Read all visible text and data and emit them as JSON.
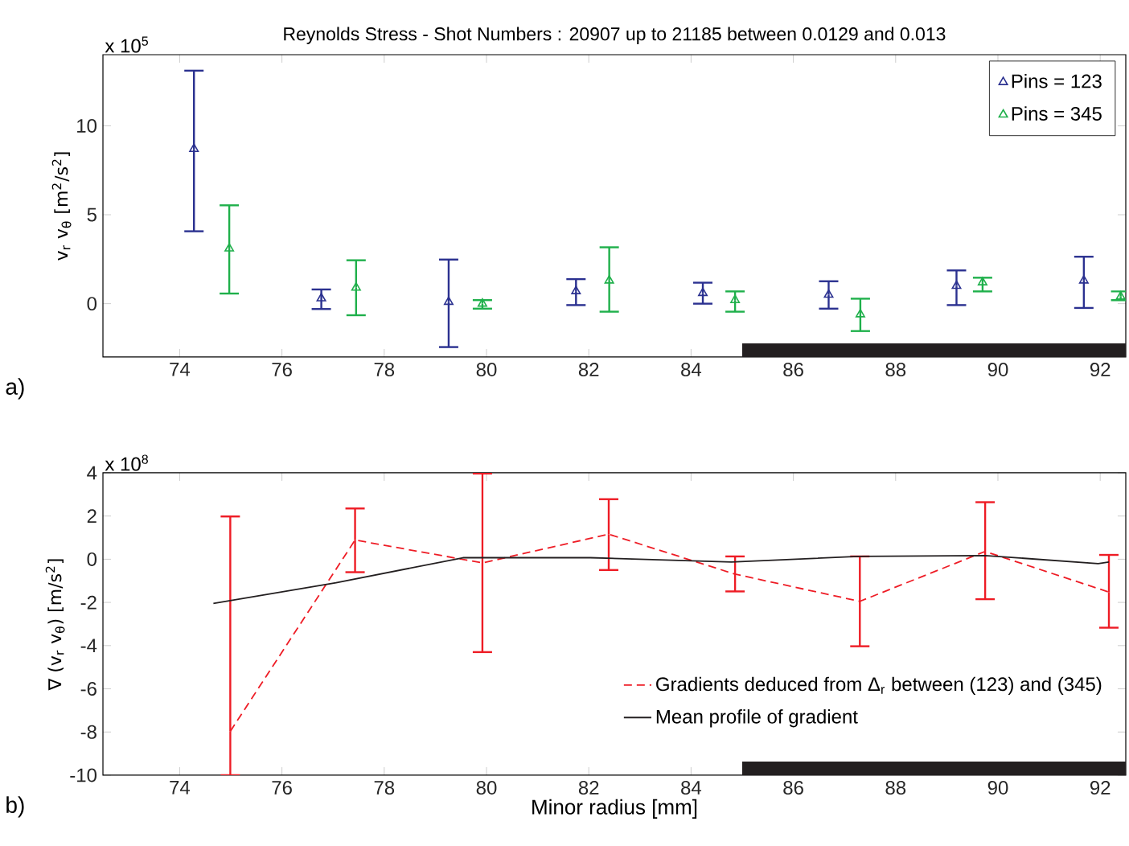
{
  "chart_data": [
    {
      "type": "scatter",
      "title": "Reynolds Stress - Shot Numbers : 20907 up to 21185 between 0.0129 and 0.013",
      "ylabel": "v$_{r}$ v$_{θ}$ [m$^{2}$/s$^{2}$]",
      "annotations": [
        "x 10$^{5}$",
        "a)"
      ],
      "xlim": [
        72.5,
        92.5
      ],
      "xticks": [
        74,
        76,
        78,
        80,
        82,
        84,
        86,
        88,
        90,
        92
      ],
      "ylim": [
        -3,
        14
      ],
      "yticks": [
        0,
        5,
        10
      ],
      "marker": "triangle",
      "legend": "top right",
      "grid": false,
      "bands": [
        {
          "axis": "x",
          "from": 85,
          "to": 92.5,
          "color": "#231f20"
        }
      ],
      "series": [
        {
          "name": "Pins = 123",
          "color": "#2b3190",
          "x": [
            74.28,
            76.77,
            79.26,
            81.75,
            84.23,
            86.69,
            89.19,
            91.68
          ],
          "values": [
            8.7,
            0.3,
            0.1,
            0.7,
            0.6,
            0.5,
            1.0,
            1.3
          ],
          "errors": [
            [
              4.07,
              13.1
            ],
            [
              -0.3,
              0.8
            ],
            [
              -2.44,
              2.48
            ],
            [
              -0.08,
              1.38
            ],
            [
              0,
              1.18
            ],
            [
              -0.28,
              1.26
            ],
            [
              -0.08,
              1.87
            ],
            [
              -0.24,
              2.64
            ]
          ]
        },
        {
          "name": "Pins = 345",
          "color": "#1fb04b",
          "x": [
            74.97,
            77.45,
            79.92,
            82.4,
            84.86,
            87.31,
            89.7,
            92.4
          ],
          "values": [
            3.1,
            0.9,
            0,
            1.3,
            0.2,
            -0.6,
            1.2,
            0.4
          ],
          "errors": [
            [
              0.57,
              5.53
            ],
            [
              -0.65,
              2.44
            ],
            [
              -0.28,
              0.2
            ],
            [
              -0.45,
              3.17
            ],
            [
              -0.45,
              0.69
            ],
            [
              -1.54,
              0.28
            ],
            [
              0.69,
              1.46
            ],
            [
              0.2,
              0.69
            ]
          ]
        }
      ]
    },
    {
      "type": "line",
      "xlabel": "Minor radius [mm]",
      "ylabel": "∇ (v$_{r}$ v$_{θ}$) [m/s$^{2}$]",
      "annotations": [
        "x 10$^{8}$",
        "b)"
      ],
      "xlim": [
        72.5,
        92.5
      ],
      "xticks": [
        74,
        76,
        78,
        80,
        82,
        84,
        86,
        88,
        90,
        92
      ],
      "ylim": [
        -10,
        4
      ],
      "yticks": [
        -10,
        -8,
        -6,
        -4,
        -2,
        0,
        2,
        4
      ],
      "legend": "bottom right",
      "grid": false,
      "bands": [
        {
          "axis": "x",
          "from": 85,
          "to": 92.5,
          "color": "#231f20"
        }
      ],
      "series": [
        {
          "name": "Gradients deduced from Δ$_{r}$ between (123) and (345)",
          "color": "#ee1c25",
          "line_style": "dashed",
          "x": [
            74.99,
            77.43,
            79.92,
            82.39,
            84.86,
            87.3,
            89.75,
            92.17
          ],
          "values": [
            -7.97,
            0.89,
            -0.17,
            1.16,
            -0.69,
            -1.95,
            0.36,
            -1.52
          ],
          "errors": [
            [
              -10,
              1.98
            ],
            [
              -0.6,
              2.35
            ],
            [
              -4.3,
              3.97
            ],
            [
              -0.5,
              2.78
            ],
            [
              -1.49,
              0.13
            ],
            [
              -4.03,
              0.13
            ],
            [
              -1.85,
              2.64
            ],
            [
              -3.17,
              0.2
            ]
          ]
        },
        {
          "name": "Mean profile of gradient",
          "color": "#231f20",
          "line_style": "solid",
          "x": [
            74.66,
            77.06,
            79.54,
            82.03,
            84.79,
            87.27,
            89.75,
            91.96,
            92.17
          ],
          "values": [
            -2.05,
            -1.09,
            0.07,
            0.07,
            -0.13,
            0.13,
            0.17,
            -0.2,
            -0.13
          ]
        }
      ]
    }
  ]
}
